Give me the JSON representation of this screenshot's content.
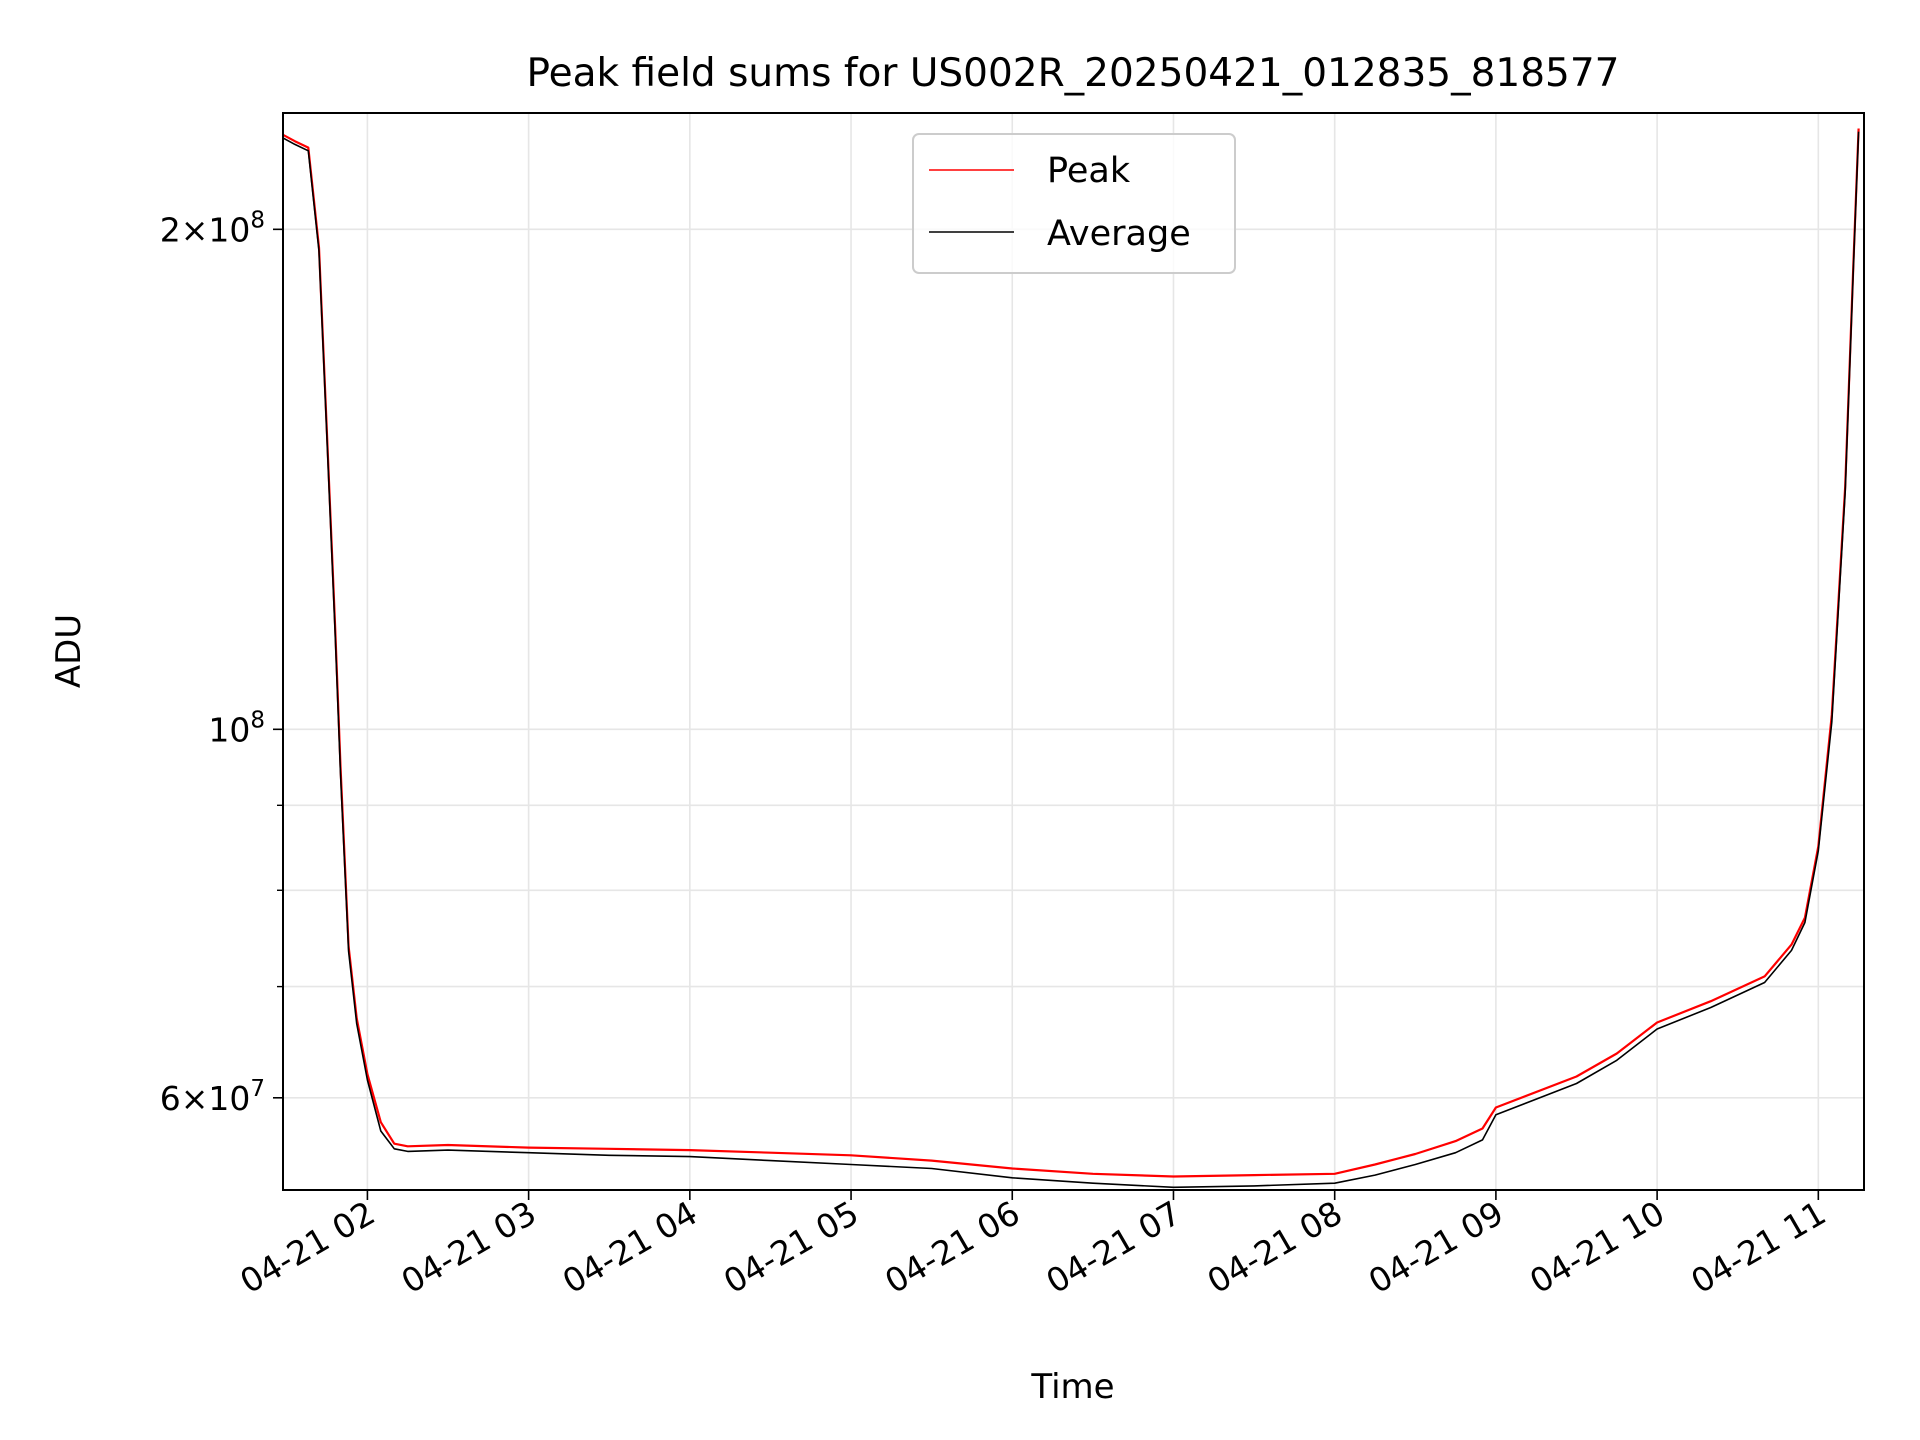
{
  "chart_data": {
    "type": "line",
    "title": "Peak field sums for US002R_20250421_012835_818577",
    "xlabel": "Time",
    "ylabel": "ADU",
    "y_scale": "log",
    "xlim": [
      "2025-04-21T01:28:35",
      "2025-04-21T11:17:00"
    ],
    "ylim": [
      52800000,
      235000000
    ],
    "grid": true,
    "legend_position": "upper center",
    "x_ticks": [
      {
        "time": "2025-04-21T02:00:00",
        "label": "04-21 02"
      },
      {
        "time": "2025-04-21T03:00:00",
        "label": "04-21 03"
      },
      {
        "time": "2025-04-21T04:00:00",
        "label": "04-21 04"
      },
      {
        "time": "2025-04-21T05:00:00",
        "label": "04-21 05"
      },
      {
        "time": "2025-04-21T06:00:00",
        "label": "04-21 06"
      },
      {
        "time": "2025-04-21T07:00:00",
        "label": "04-21 07"
      },
      {
        "time": "2025-04-21T08:00:00",
        "label": "04-21 08"
      },
      {
        "time": "2025-04-21T09:00:00",
        "label": "04-21 09"
      },
      {
        "time": "2025-04-21T10:00:00",
        "label": "04-21 10"
      },
      {
        "time": "2025-04-21T11:00:00",
        "label": "04-21 11"
      }
    ],
    "y_major_ticks": [
      {
        "value": 60000000,
        "mantissa": "6",
        "exponent": "7"
      },
      {
        "value": 100000000,
        "mantissa": "",
        "exponent": "8"
      },
      {
        "value": 200000000,
        "mantissa": "2",
        "exponent": "8"
      }
    ],
    "y_minor_ticks": [
      70000000,
      80000000,
      90000000
    ],
    "series": [
      {
        "name": "Peak",
        "color": "#ff0000",
        "x": [
          "2025-04-21T01:28:35",
          "2025-04-21T01:33:00",
          "2025-04-21T01:38:00",
          "2025-04-21T01:42:00",
          "2025-04-21T01:45:00",
          "2025-04-21T01:48:00",
          "2025-04-21T01:50:00",
          "2025-04-21T01:53:00",
          "2025-04-21T01:56:00",
          "2025-04-21T02:00:00",
          "2025-04-21T02:05:00",
          "2025-04-21T02:10:00",
          "2025-04-21T02:15:00",
          "2025-04-21T02:30:00",
          "2025-04-21T03:00:00",
          "2025-04-21T03:30:00",
          "2025-04-21T04:00:00",
          "2025-04-21T04:30:00",
          "2025-04-21T05:00:00",
          "2025-04-21T05:30:00",
          "2025-04-21T06:00:00",
          "2025-04-21T06:30:00",
          "2025-04-21T07:00:00",
          "2025-04-21T07:30:00",
          "2025-04-21T08:00:00",
          "2025-04-21T08:15:00",
          "2025-04-21T08:30:00",
          "2025-04-21T08:45:00",
          "2025-04-21T08:55:00",
          "2025-04-21T09:00:00",
          "2025-04-21T09:30:00",
          "2025-04-21T09:45:00",
          "2025-04-21T10:00:00",
          "2025-04-21T10:20:00",
          "2025-04-21T10:40:00",
          "2025-04-21T10:50:00",
          "2025-04-21T10:55:00",
          "2025-04-21T11:00:00",
          "2025-04-21T11:05:00",
          "2025-04-21T11:10:00",
          "2025-04-21T11:13:00",
          "2025-04-21T11:15:00"
        ],
        "y": [
          228000000,
          226000000,
          224000000,
          195000000,
          150000000,
          115000000,
          95000000,
          74000000,
          67000000,
          62000000,
          58000000,
          56300000,
          56100000,
          56200000,
          56000000,
          55900000,
          55800000,
          55600000,
          55400000,
          55000000,
          54400000,
          54000000,
          53800000,
          53900000,
          54000000,
          54700000,
          55500000,
          56500000,
          57500000,
          59200000,
          61800000,
          63800000,
          66600000,
          68600000,
          71000000,
          74200000,
          77000000,
          85000000,
          102000000,
          140000000,
          190000000,
          230000000
        ]
      },
      {
        "name": "Average",
        "color": "#000000",
        "x": [
          "2025-04-21T01:28:35",
          "2025-04-21T01:33:00",
          "2025-04-21T01:38:00",
          "2025-04-21T01:42:00",
          "2025-04-21T01:45:00",
          "2025-04-21T01:48:00",
          "2025-04-21T01:50:00",
          "2025-04-21T01:53:00",
          "2025-04-21T01:56:00",
          "2025-04-21T02:00:00",
          "2025-04-21T02:05:00",
          "2025-04-21T02:10:00",
          "2025-04-21T02:15:00",
          "2025-04-21T02:30:00",
          "2025-04-21T03:00:00",
          "2025-04-21T03:30:00",
          "2025-04-21T04:00:00",
          "2025-04-21T04:30:00",
          "2025-04-21T05:00:00",
          "2025-04-21T05:30:00",
          "2025-04-21T06:00:00",
          "2025-04-21T06:30:00",
          "2025-04-21T07:00:00",
          "2025-04-21T07:30:00",
          "2025-04-21T08:00:00",
          "2025-04-21T08:15:00",
          "2025-04-21T08:30:00",
          "2025-04-21T08:45:00",
          "2025-04-21T08:55:00",
          "2025-04-21T09:00:00",
          "2025-04-21T09:30:00",
          "2025-04-21T09:45:00",
          "2025-04-21T10:00:00",
          "2025-04-21T10:20:00",
          "2025-04-21T10:40:00",
          "2025-04-21T10:50:00",
          "2025-04-21T10:55:00",
          "2025-04-21T11:00:00",
          "2025-04-21T11:05:00",
          "2025-04-21T11:10:00",
          "2025-04-21T11:13:00",
          "2025-04-21T11:15:00"
        ],
        "y": [
          227000000,
          225000000,
          223000000,
          194000000,
          149000000,
          114000000,
          94000000,
          73500000,
          66500000,
          61500000,
          57300000,
          55900000,
          55700000,
          55800000,
          55600000,
          55400000,
          55300000,
          55000000,
          54700000,
          54400000,
          53700000,
          53300000,
          53000000,
          53100000,
          53300000,
          53900000,
          54700000,
          55600000,
          56600000,
          58600000,
          61200000,
          63200000,
          66000000,
          68000000,
          70400000,
          73600000,
          76500000,
          84500000,
          101000000,
          139000000,
          189000000,
          229000000
        ]
      }
    ]
  }
}
